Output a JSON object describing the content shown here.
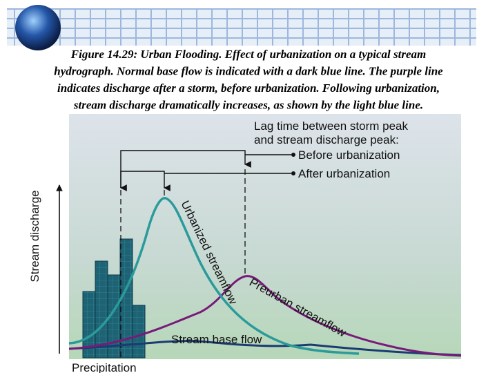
{
  "caption": {
    "lines": [
      "Figure 14.29: Urban Flooding.  Effect of urbanization on a typical stream",
      "hydrograph.  Normal base flow is indicated with a dark blue line.  The purple line",
      "indicates discharge after a storm, before urbanization.  Following urbanization,",
      "stream discharge dramatically increases, as shown by the light blue line."
    ]
  },
  "diagram": {
    "lag_title": [
      "Lag time between storm peak",
      "and stream discharge peak:"
    ],
    "before_label": "Before urbanization",
    "after_label": "After urbanization",
    "y_axis_label": "Stream discharge",
    "urbanized_label": "Urbanized streamflow",
    "preurban_label": "Preurban streamflow",
    "base_flow_label": "Stream base flow",
    "x_axis_label": "Precipitation"
  }
}
